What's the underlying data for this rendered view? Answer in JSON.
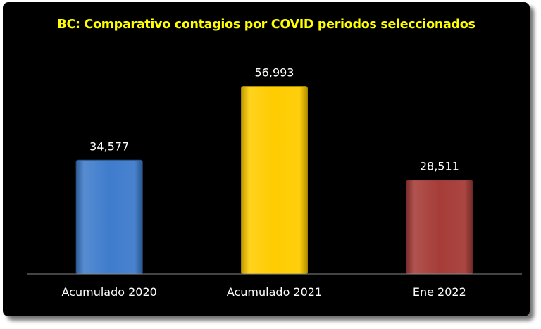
{
  "chart_data": {
    "type": "bar",
    "title": "BC: Comparativo contagios por COVID periodos seleccionados",
    "categories": [
      "Acumulado 2020",
      "Acumulado 2021",
      "Ene 2022"
    ],
    "values": [
      34577,
      56993,
      28511
    ],
    "value_labels": [
      "34,577",
      "56,993",
      "28,511"
    ],
    "colors": [
      "#3f7ccc",
      "#ffcc00",
      "#a63c38"
    ],
    "ylim": [
      0,
      65000
    ],
    "grid": false,
    "legend": "none"
  }
}
